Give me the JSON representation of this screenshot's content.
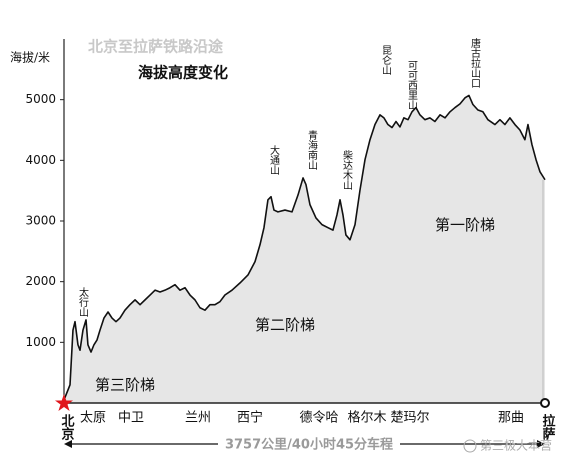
{
  "chart_data": {
    "type": "area",
    "title": "北京至拉萨铁路沿途",
    "subtitle": "海拔高度变化",
    "y_label": "海拔/米",
    "xlim": [
      0,
      3757
    ],
    "ylim": [
      0,
      6000
    ],
    "yticks": [
      1000,
      2000,
      3000,
      4000,
      5000
    ],
    "x": [
      0,
      47,
      70,
      86,
      109,
      125,
      148,
      172,
      187,
      211,
      234,
      258,
      281,
      312,
      344,
      375,
      406,
      437,
      476,
      515,
      555,
      594,
      633,
      672,
      711,
      750,
      789,
      828,
      867,
      906,
      945,
      984,
      1023,
      1062,
      1101,
      1140,
      1179,
      1218,
      1257,
      1312,
      1375,
      1437,
      1492,
      1531,
      1562,
      1593,
      1617,
      1640,
      1671,
      1726,
      1781,
      1828,
      1867,
      1890,
      1921,
      1968,
      2015,
      2062,
      2101,
      2132,
      2156,
      2179,
      2202,
      2234,
      2273,
      2312,
      2351,
      2390,
      2429,
      2468,
      2499,
      2530,
      2562,
      2593,
      2624,
      2655,
      2687,
      2718,
      2749,
      2780,
      2819,
      2858,
      2897,
      2937,
      2976,
      3015,
      3054,
      3093,
      3132,
      3163,
      3194,
      3233,
      3272,
      3311,
      3366,
      3405,
      3444,
      3483,
      3522,
      3561,
      3600,
      3624,
      3655,
      3687,
      3718,
      3757
    ],
    "values": [
      50,
      300,
      1200,
      1340,
      960,
      870,
      1200,
      1370,
      960,
      840,
      960,
      1040,
      1200,
      1400,
      1500,
      1400,
      1340,
      1400,
      1530,
      1620,
      1700,
      1620,
      1700,
      1780,
      1860,
      1830,
      1860,
      1900,
      1950,
      1860,
      1900,
      1780,
      1700,
      1570,
      1530,
      1620,
      1620,
      1670,
      1780,
      1860,
      1980,
      2110,
      2330,
      2610,
      2890,
      3350,
      3400,
      3180,
      3150,
      3180,
      3150,
      3430,
      3710,
      3600,
      3270,
      3050,
      2940,
      2890,
      2850,
      3100,
      3350,
      3100,
      2770,
      2690,
      2940,
      3510,
      4010,
      4340,
      4590,
      4750,
      4700,
      4590,
      4540,
      4640,
      4550,
      4700,
      4670,
      4800,
      4870,
      4750,
      4670,
      4700,
      4640,
      4750,
      4700,
      4800,
      4870,
      4930,
      5030,
      5070,
      4920,
      4830,
      4800,
      4670,
      4590,
      4670,
      4590,
      4700,
      4590,
      4500,
      4340,
      4590,
      4260,
      4010,
      3810,
      3680
    ],
    "color": "#e6e6e6",
    "line_color": "#111111",
    "start": "北京",
    "end": "拉萨",
    "stations": [
      "太原",
      "中卫",
      "兰州",
      "西宁",
      "德令哈",
      "格尔木",
      "楚玛尔",
      "那曲"
    ],
    "peaks": [
      "太行山",
      "大通山",
      "青海南山",
      "柴达木山",
      "昆仑山",
      "可可西里山",
      "唐古拉山口"
    ],
    "regions": [
      "第三阶梯",
      "第二阶梯",
      "第一阶梯"
    ],
    "distance": "3757公里/40小时45分车程",
    "watermark": "第三极大本营"
  }
}
